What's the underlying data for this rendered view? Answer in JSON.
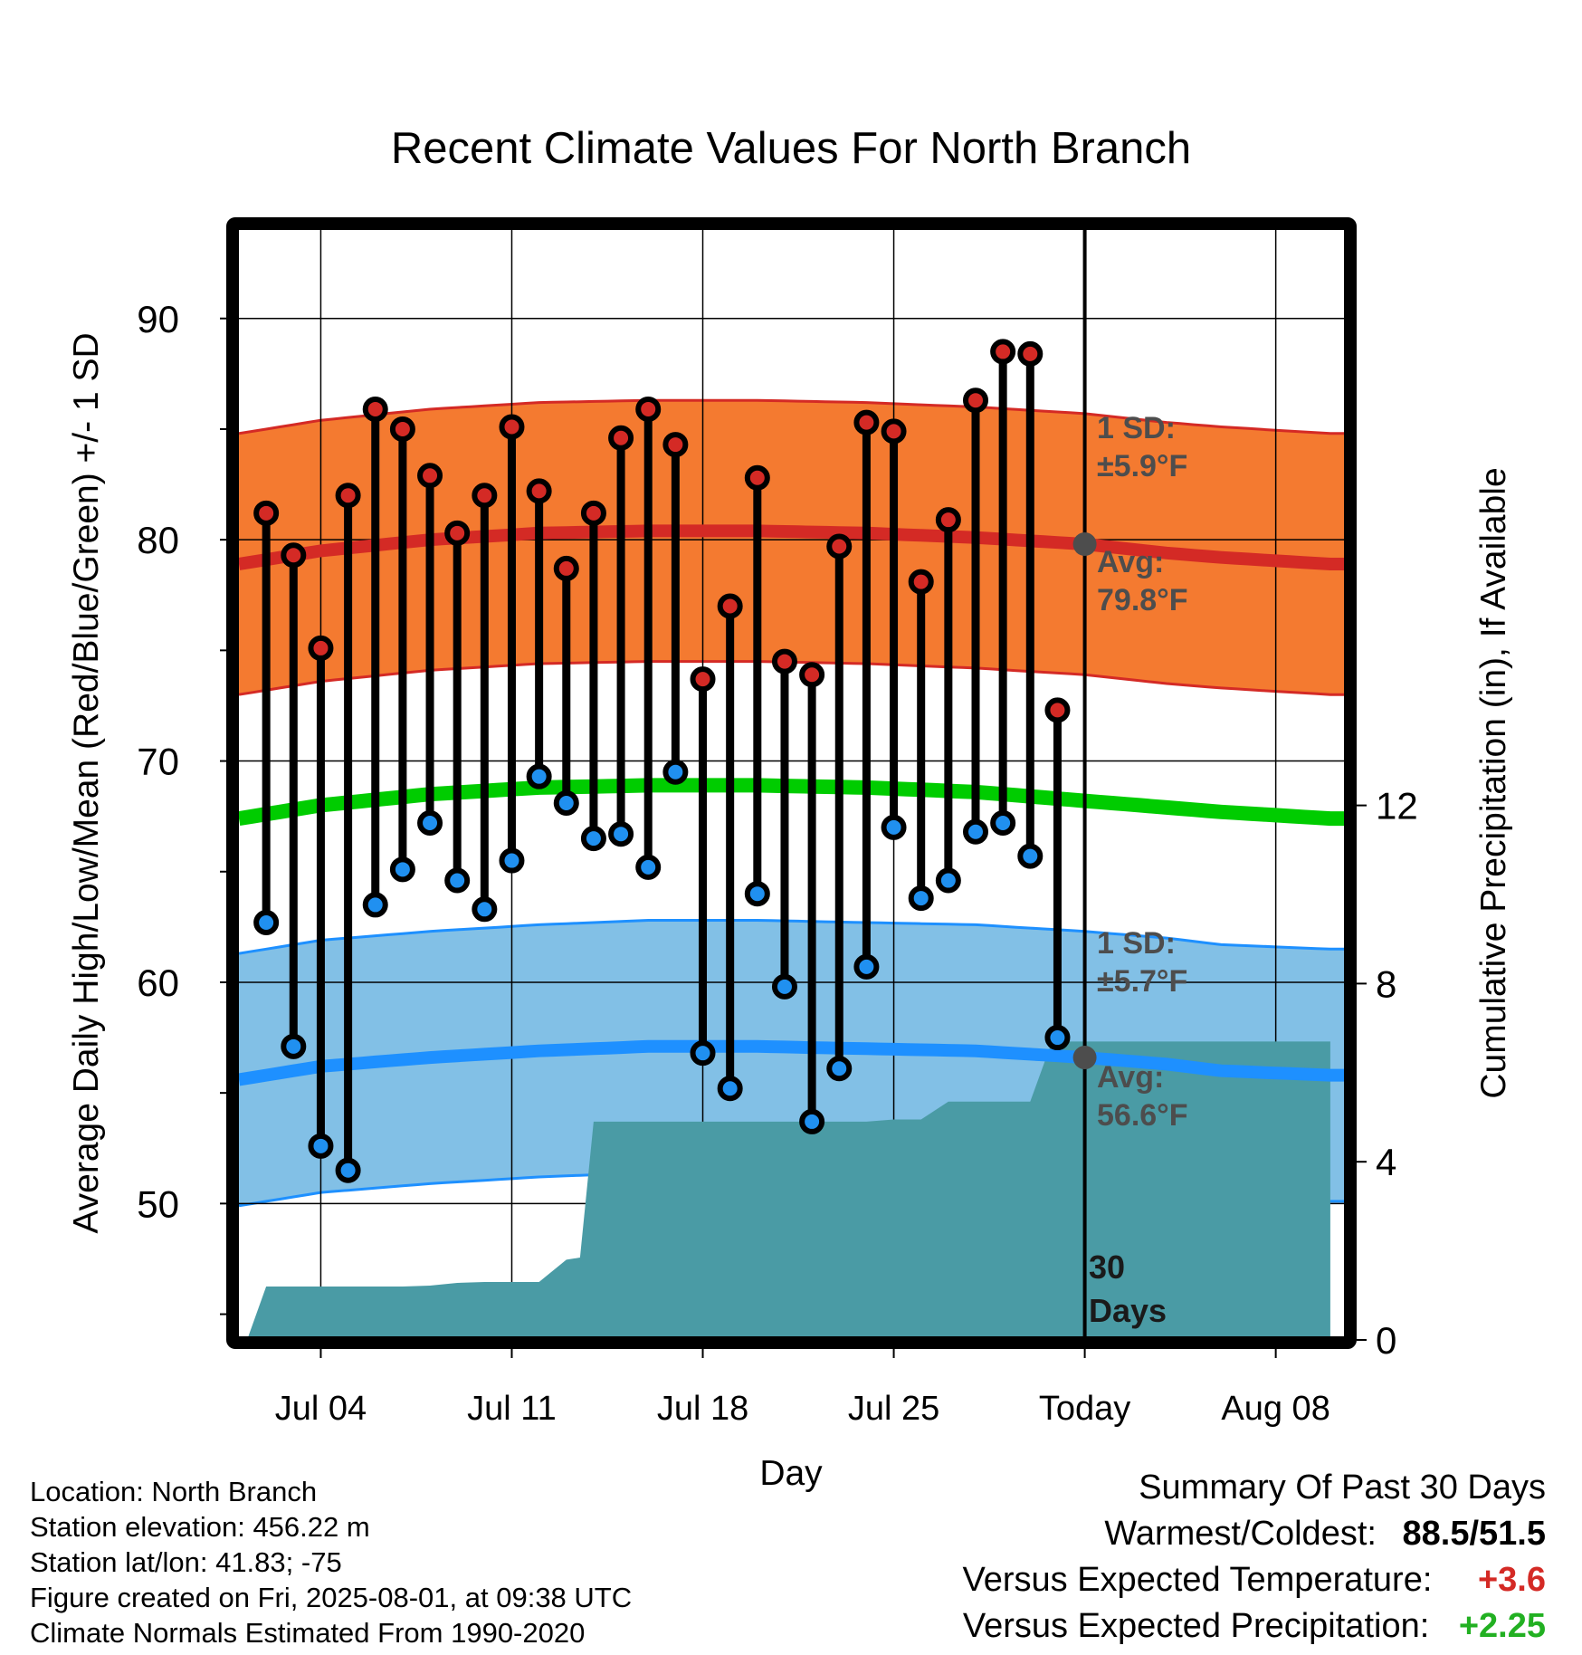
{
  "chart_data": {
    "type": "line",
    "title": "Recent Climate Values For North Branch",
    "xlabel": "Day",
    "ylabel": "Average Daily High/Low/Mean (Red/Blue/Green) +/- 1 SD",
    "y2label": "Cumulative Precipitation (in), If Available",
    "ylim": [
      44,
      94
    ],
    "y2lim": [
      0,
      12
    ],
    "yticks": [
      50,
      60,
      70,
      80,
      90
    ],
    "y2ticks": [
      0,
      4,
      8,
      12
    ],
    "xticks": [
      {
        "day": 4,
        "label": "Jul 04"
      },
      {
        "day": 11,
        "label": "Jul 11"
      },
      {
        "day": 18,
        "label": "Jul 18"
      },
      {
        "day": 25,
        "label": "Jul 25"
      },
      {
        "day": 32,
        "label": "Today"
      },
      {
        "day": 39,
        "label": "Aug 08"
      }
    ],
    "days": [
      2,
      3,
      4,
      5,
      6,
      7,
      8,
      9,
      10,
      11,
      12,
      13,
      14,
      15,
      16,
      17,
      18,
      19,
      20,
      21,
      22,
      23,
      24,
      25,
      26,
      27,
      28,
      29,
      30,
      31
    ],
    "highs": [
      81.2,
      79.3,
      75.1,
      82.0,
      85.9,
      85.0,
      82.9,
      80.3,
      82.0,
      85.1,
      82.2,
      78.7,
      81.2,
      84.6,
      85.9,
      84.3,
      73.7,
      77.0,
      82.8,
      74.5,
      73.9,
      79.7,
      85.3,
      84.9,
      78.1,
      80.9,
      86.3,
      88.5,
      88.4,
      72.3
    ],
    "lows": [
      62.7,
      57.1,
      52.6,
      51.5,
      63.5,
      65.1,
      67.2,
      64.6,
      63.3,
      65.5,
      69.3,
      68.1,
      66.5,
      66.7,
      65.2,
      69.5,
      56.8,
      55.2,
      64.0,
      59.8,
      53.7,
      56.1,
      60.7,
      67.0,
      63.8,
      64.6,
      66.8,
      67.2,
      65.7,
      57.5
    ],
    "normals": {
      "days": [
        1,
        4,
        8,
        12,
        16,
        20,
        24,
        28,
        32,
        35,
        37,
        41
      ],
      "avg_high": [
        78.9,
        79.5,
        80.0,
        80.3,
        80.4,
        80.4,
        80.3,
        80.1,
        79.8,
        79.4,
        79.2,
        78.9
      ],
      "avg_low": [
        55.6,
        56.2,
        56.6,
        56.9,
        57.1,
        57.1,
        57.0,
        56.9,
        56.6,
        56.3,
        56.0,
        55.8
      ],
      "avg_mean": [
        67.4,
        68.0,
        68.5,
        68.8,
        68.9,
        68.9,
        68.8,
        68.6,
        68.2,
        67.9,
        67.7,
        67.4
      ],
      "high_sd": 5.9,
      "low_sd": 5.7
    },
    "precip_cumulative": {
      "days": [
        1.3,
        2.0,
        5.0,
        6.0,
        7.0,
        8.0,
        9.0,
        10.0,
        11.0,
        12.0,
        13.0,
        13.5,
        14.0,
        15.0,
        20.0,
        22.0,
        24.0,
        25.0,
        26.0,
        27.0,
        28.0,
        29.0,
        30.0,
        30.8,
        31.0,
        32.0,
        41.0
      ],
      "values": [
        0,
        1.2,
        1.2,
        1.2,
        1.2,
        1.22,
        1.28,
        1.3,
        1.3,
        1.3,
        1.8,
        1.85,
        4.9,
        4.9,
        4.9,
        4.9,
        4.9,
        4.95,
        4.95,
        5.35,
        5.35,
        5.35,
        5.35,
        6.7,
        6.7,
        6.7,
        6.7
      ]
    },
    "today_day": 32,
    "today_avg_high": 79.8,
    "today_avg_low": 56.6,
    "grid": true,
    "colors": {
      "high_band": "#f47a30",
      "high_line": "#d42a25",
      "low_band": "#82c0e6",
      "low_line": "#1e90ff",
      "mean_line": "#00cc00",
      "precip": "#4a9ba5",
      "high_dot": "#d42a25",
      "low_dot": "#2090f0",
      "annotation": "#4d4d4d",
      "warm": "#d42a25",
      "wet": "#22b022"
    }
  },
  "annotations": {
    "high_sd_title": "1 SD:",
    "high_sd_value": "±5.9°F",
    "high_avg_title": "Avg:",
    "high_avg_value": "79.8°F",
    "low_sd_title": "1 SD:",
    "low_sd_value": "±5.7°F",
    "low_avg_title": "Avg:",
    "low_avg_value": "56.6°F",
    "days_number": "30",
    "days_word": "Days"
  },
  "info": {
    "location": "Location: North Branch",
    "elevation": "Station elevation: 456.22 m",
    "latlon": "Station lat/lon: 41.83; -75",
    "created": "Figure created on Fri, 2025-08-01, at 09:38 UTC",
    "normals": "Climate Normals Estimated From 1990-2020"
  },
  "summary": {
    "title": "Summary Of Past 30 Days",
    "warmest_label": "Warmest/Coldest:",
    "warmest_value": "88.5/51.5",
    "temp_label": "Versus Expected Temperature:",
    "temp_value": "+3.6",
    "precip_label": "Versus Expected Precipitation:",
    "precip_value": "+2.25"
  }
}
